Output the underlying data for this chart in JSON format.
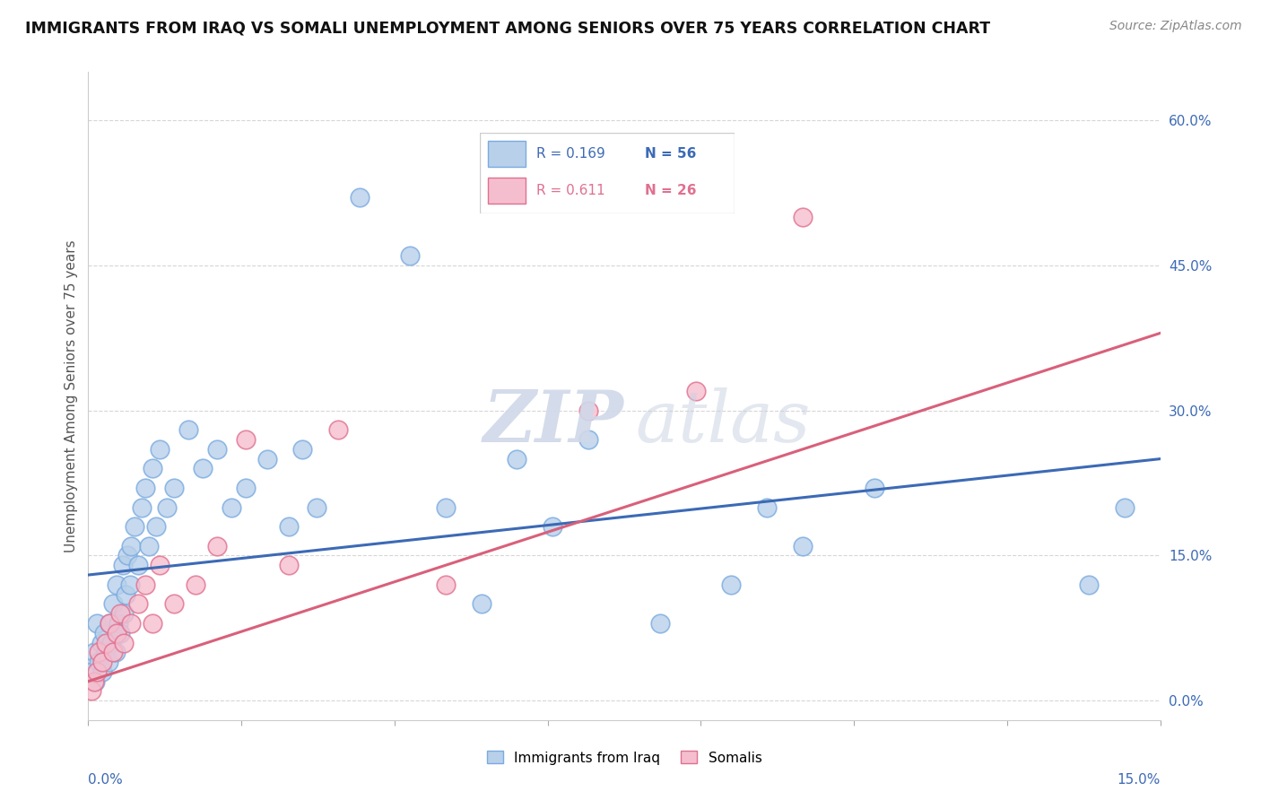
{
  "title": "IMMIGRANTS FROM IRAQ VS SOMALI UNEMPLOYMENT AMONG SENIORS OVER 75 YEARS CORRELATION CHART",
  "source": "Source: ZipAtlas.com",
  "ylabel": "Unemployment Among Seniors over 75 years",
  "ytick_values": [
    0.0,
    15.0,
    30.0,
    45.0,
    60.0
  ],
  "xrange": [
    0.0,
    15.0
  ],
  "yrange": [
    -2.0,
    65.0
  ],
  "legend_iraq_r": "0.169",
  "legend_iraq_n": "56",
  "legend_somali_r": "0.611",
  "legend_somali_n": "26",
  "iraq_color": "#b8d0ea",
  "iraq_edge_color": "#7aabe0",
  "somali_color": "#f5bece",
  "somali_edge_color": "#e07090",
  "iraq_line_color": "#3c6ab5",
  "somali_line_color": "#d9607a",
  "watermark_zip": "ZIP",
  "watermark_atlas": "atlas",
  "iraq_x": [
    0.05,
    0.08,
    0.1,
    0.12,
    0.15,
    0.18,
    0.2,
    0.22,
    0.25,
    0.28,
    0.3,
    0.32,
    0.35,
    0.38,
    0.4,
    0.42,
    0.45,
    0.48,
    0.5,
    0.52,
    0.55,
    0.58,
    0.6,
    0.65,
    0.7,
    0.75,
    0.8,
    0.85,
    0.9,
    0.95,
    1.0,
    1.1,
    1.2,
    1.4,
    1.6,
    1.8,
    2.0,
    2.2,
    2.5,
    2.8,
    3.0,
    3.2,
    3.8,
    4.5,
    5.0,
    5.5,
    6.0,
    6.5,
    7.0,
    8.0,
    9.0,
    9.5,
    10.0,
    11.0,
    14.0,
    14.5
  ],
  "iraq_y": [
    3.0,
    5.0,
    2.0,
    8.0,
    4.0,
    6.0,
    3.0,
    7.0,
    5.0,
    4.0,
    8.0,
    6.0,
    10.0,
    5.0,
    12.0,
    8.0,
    7.0,
    14.0,
    9.0,
    11.0,
    15.0,
    12.0,
    16.0,
    18.0,
    14.0,
    20.0,
    22.0,
    16.0,
    24.0,
    18.0,
    26.0,
    20.0,
    22.0,
    28.0,
    24.0,
    26.0,
    20.0,
    22.0,
    25.0,
    18.0,
    26.0,
    20.0,
    52.0,
    46.0,
    20.0,
    10.0,
    25.0,
    18.0,
    27.0,
    8.0,
    12.0,
    20.0,
    16.0,
    22.0,
    12.0,
    20.0
  ],
  "somali_x": [
    0.05,
    0.08,
    0.12,
    0.15,
    0.2,
    0.25,
    0.3,
    0.35,
    0.4,
    0.45,
    0.5,
    0.6,
    0.7,
    0.8,
    0.9,
    1.0,
    1.2,
    1.5,
    1.8,
    2.2,
    2.8,
    3.5,
    5.0,
    7.0,
    8.5,
    10.0
  ],
  "somali_y": [
    1.0,
    2.0,
    3.0,
    5.0,
    4.0,
    6.0,
    8.0,
    5.0,
    7.0,
    9.0,
    6.0,
    8.0,
    10.0,
    12.0,
    8.0,
    14.0,
    10.0,
    12.0,
    16.0,
    27.0,
    14.0,
    28.0,
    12.0,
    30.0,
    32.0,
    50.0
  ]
}
